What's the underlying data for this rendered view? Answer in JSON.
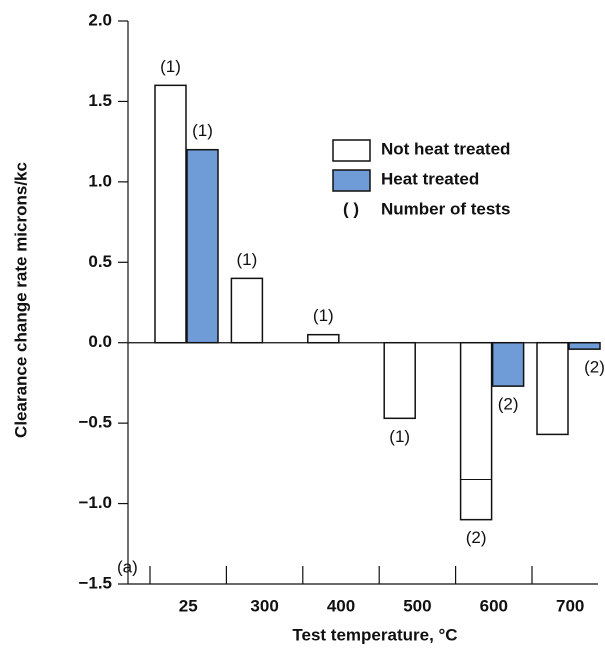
{
  "chart_data": {
    "type": "bar",
    "y_label": "Clearance change rate microns/kc",
    "x_label": "Test temperature, °C",
    "panel_label": "(a)",
    "categories": [
      "25",
      "300",
      "400",
      "500",
      "600",
      "700"
    ],
    "series": [
      {
        "name": "Not heat treated",
        "color": "#ffffff",
        "values": [
          1.6,
          0.4,
          0.05,
          -0.47,
          -1.1,
          -0.57
        ],
        "test_labels": [
          "(1)",
          "(1)",
          "(1)",
          "(1)",
          "(2)",
          null
        ],
        "inner_lines": [
          null,
          null,
          null,
          null,
          -0.85,
          null
        ]
      },
      {
        "name": "Heat treated",
        "color": "#6f9bd6",
        "values": [
          1.2,
          null,
          null,
          null,
          -0.27,
          -0.04
        ],
        "test_labels": [
          "(1)",
          null,
          null,
          null,
          "(2)",
          "(2)"
        ]
      }
    ],
    "legend_note": {
      "symbol": "( )",
      "text": "Number of tests"
    },
    "ylim": [
      -1.5,
      2.0
    ],
    "yticks": [
      {
        "value": -1.5,
        "label": "−1.5"
      },
      {
        "value": -1.0,
        "label": "−1.0"
      },
      {
        "value": -0.5,
        "label": "−0.5"
      },
      {
        "value": 0,
        "label": "0.0"
      },
      0.5,
      {
        "value": 1.0,
        "label": "1.0"
      },
      1.5,
      {
        "value": 2.0,
        "label": "2.0"
      }
    ]
  }
}
